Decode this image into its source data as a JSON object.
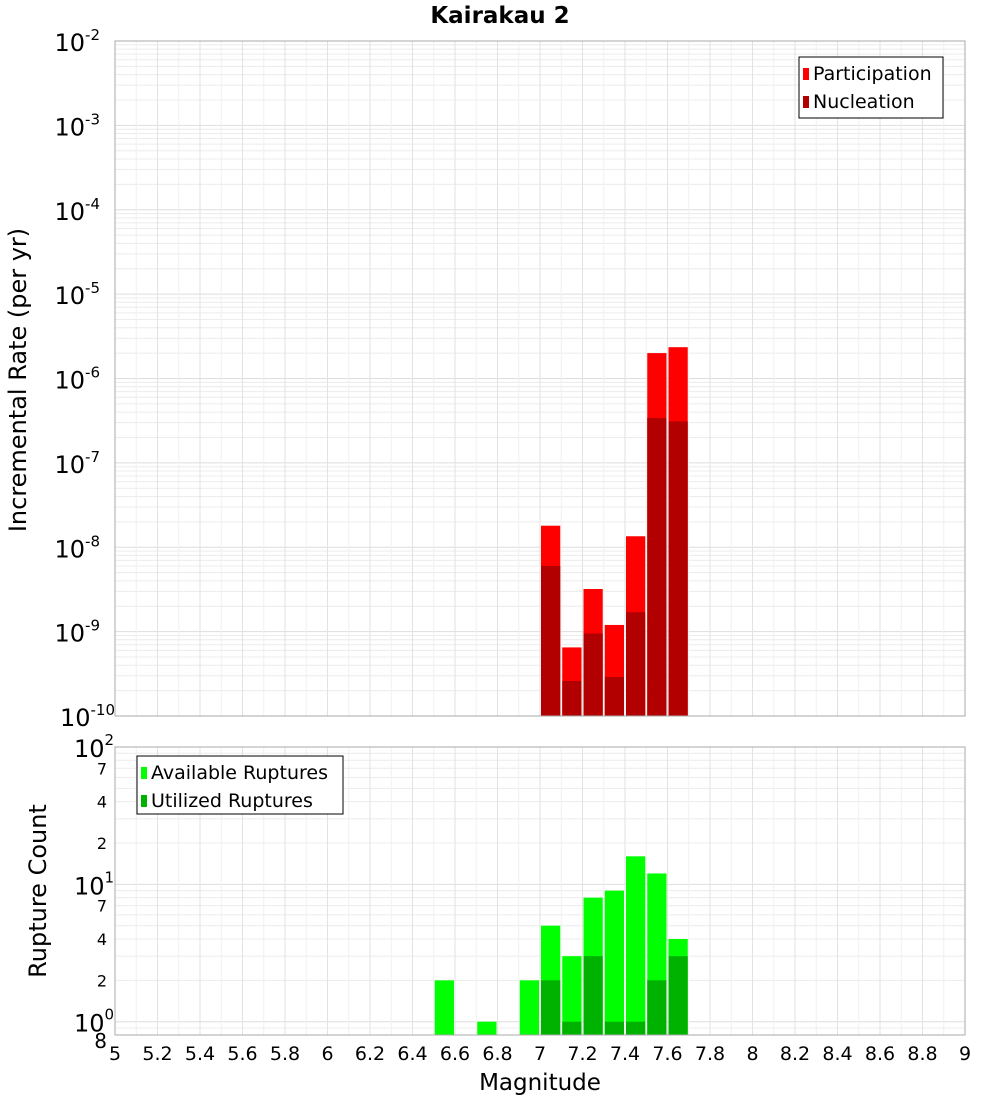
{
  "chart_data": [
    {
      "type": "bar",
      "title": "Kairakau 2",
      "ylabel": "Incremental Rate (per yr)",
      "xlabel": "",
      "xlim": [
        5,
        9
      ],
      "ylim": [
        1e-10,
        0.01
      ],
      "y_scale": "log",
      "grid": true,
      "legend_position": "top-right",
      "x": [
        7.05,
        7.15,
        7.25,
        7.35,
        7.45,
        7.55,
        7.65
      ],
      "bar_width": 0.1,
      "series": [
        {
          "name": "Participation",
          "color": "#ff0000",
          "values": [
            1.8e-08,
            6.5e-10,
            3.2e-09,
            1.2e-09,
            1.35e-08,
            2e-06,
            2.35e-06
          ]
        },
        {
          "name": "Nucleation",
          "color": "#b20000",
          "values": [
            6e-09,
            2.6e-10,
            9.5e-10,
            2.9e-10,
            1.7e-09,
            3.4e-07,
            3.1e-07
          ]
        }
      ],
      "y_ticks": [
        {
          "base": "10",
          "exp": "-2"
        },
        {
          "base": "10",
          "exp": "-3"
        },
        {
          "base": "10",
          "exp": "-4"
        },
        {
          "base": "10",
          "exp": "-5"
        },
        {
          "base": "10",
          "exp": "-6"
        },
        {
          "base": "10",
          "exp": "-7"
        },
        {
          "base": "10",
          "exp": "-8"
        },
        {
          "base": "10",
          "exp": "-9"
        },
        {
          "base": "10",
          "exp": "-10"
        }
      ]
    },
    {
      "type": "bar",
      "title": "",
      "ylabel": "Rupture Count",
      "xlabel": "Magnitude",
      "xlim": [
        5,
        9
      ],
      "ylim": [
        0.8,
        100
      ],
      "y_scale": "log",
      "grid": true,
      "legend_position": "top-left",
      "x": [
        6.55,
        6.75,
        6.95,
        7.05,
        7.15,
        7.25,
        7.35,
        7.45,
        7.55,
        7.65
      ],
      "bar_width": 0.1,
      "series": [
        {
          "name": "Available Ruptures",
          "color": "#00ff00",
          "values": [
            2,
            1,
            2,
            5,
            3,
            8,
            9,
            16,
            12,
            4
          ]
        },
        {
          "name": "Utilized Ruptures",
          "color": "#00b200",
          "values": [
            0,
            0,
            0,
            2,
            1,
            3,
            1,
            1,
            2,
            3
          ]
        }
      ],
      "y_decades": [
        {
          "base": "10",
          "exp": "0"
        },
        {
          "base": "10",
          "exp": "1"
        },
        {
          "base": "10",
          "exp": "2"
        }
      ],
      "y_minor_labels": [
        "8",
        "2",
        "4",
        "7",
        "2",
        "4",
        "7"
      ],
      "x_ticks": [
        "5",
        "5.2",
        "5.4",
        "5.6",
        "5.8",
        "6",
        "6.2",
        "6.4",
        "6.6",
        "6.8",
        "7",
        "7.2",
        "7.4",
        "7.6",
        "7.8",
        "8",
        "8.2",
        "8.4",
        "8.6",
        "8.8",
        "9"
      ]
    }
  ]
}
